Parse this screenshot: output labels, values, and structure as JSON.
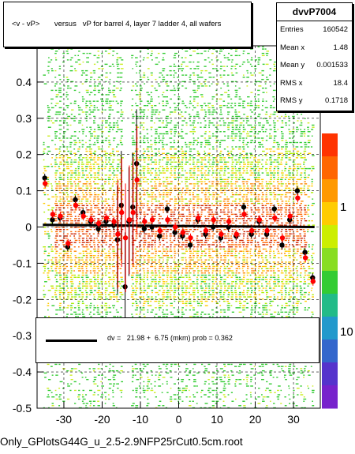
{
  "chart_data": {
    "type": "scatter",
    "title": "<v - vP>       versus   vP for barrel 4, layer 7 ladder 4, all wafers",
    "xlim": [
      -37,
      37
    ],
    "ylim": [
      -0.5,
      0.5
    ],
    "x_ticks": [
      "-30",
      "-20",
      "-10",
      "0",
      "10",
      "20",
      "30"
    ],
    "x_tick_values": [
      -30,
      -20,
      -10,
      0,
      10,
      20,
      30
    ],
    "y_ticks": [
      "-0.5",
      "-0.4",
      "-0.3",
      "-0.2",
      "-0.1",
      "0",
      "0.1",
      "0.2",
      "0.3",
      "0.4"
    ],
    "y_tick_values": [
      -0.5,
      -0.4,
      -0.3,
      -0.2,
      -0.1,
      0,
      0.1,
      0.2,
      0.3,
      0.4
    ],
    "z_scale": "log",
    "z_ticks": [
      "1",
      "10"
    ],
    "grid": true,
    "series": [
      {
        "marker": "black-circle",
        "x": [
          -35,
          -33,
          -31,
          -29,
          -27,
          -25,
          -23,
          -21,
          -19,
          -17,
          -16,
          -15,
          -14,
          -13,
          -12,
          -11,
          -9,
          -7,
          -5,
          -3,
          -1,
          1,
          3,
          5,
          7,
          9,
          11,
          13,
          15,
          17,
          19,
          21,
          23,
          25,
          27,
          29,
          31,
          33,
          35
        ],
        "y": [
          0.135,
          0.02,
          0.025,
          -0.055,
          0.075,
          0.04,
          0.015,
          -0.005,
          0.015,
          0.005,
          -0.035,
          0.06,
          -0.165,
          0.015,
          0.055,
          0.175,
          -0.005,
          0.0,
          -0.025,
          0.05,
          -0.015,
          -0.025,
          -0.05,
          0.02,
          -0.02,
          0.0,
          -0.03,
          0.0,
          -0.025,
          0.055,
          -0.02,
          0.015,
          -0.02,
          0.05,
          -0.05,
          0.02,
          0.1,
          -0.07,
          -0.14
        ]
      },
      {
        "marker": "red-circle",
        "x": [
          -35,
          -33,
          -31,
          -29,
          -27,
          -25,
          -23,
          -21,
          -19,
          -17,
          -16,
          -15,
          -14,
          -13,
          -12,
          -11,
          -9,
          -7,
          -5,
          -3,
          -1,
          1,
          3,
          5,
          7,
          9,
          11,
          13,
          15,
          17,
          19,
          21,
          23,
          25,
          27,
          29,
          31,
          33,
          35
        ],
        "y": [
          0.12,
          0.035,
          0.03,
          -0.045,
          0.06,
          0.03,
          0.02,
          0.01,
          0.025,
          0.015,
          -0.02,
          0.04,
          -0.03,
          0.02,
          0.04,
          0.13,
          0.015,
          0.02,
          -0.01,
          0.02,
          0.0,
          -0.015,
          -0.03,
          0.025,
          -0.01,
          0.02,
          -0.02,
          0.015,
          -0.02,
          0.035,
          -0.01,
          0.02,
          -0.01,
          0.025,
          -0.03,
          0.03,
          0.08,
          -0.085,
          -0.15
        ]
      }
    ],
    "fit": {
      "label": "dv =   21.98 +  6.75 (mkm) prob = 0.362",
      "y_at_min": 0.006,
      "y_at_max": 0.0
    }
  },
  "stats": {
    "name": "dvvP7004",
    "rows": [
      {
        "label": "Entries",
        "value": "160542"
      },
      {
        "label": "Mean x",
        "value": "1.48"
      },
      {
        "label": "Mean y",
        "value": "0.001533"
      },
      {
        "label": "RMS x",
        "value": "18.4"
      },
      {
        "label": "RMS y",
        "value": "0.1718"
      }
    ]
  },
  "footer": "Only_GPlotsG44G_u_2.5-2.9NFP25rCut0.5cm.root",
  "colors": {
    "heat_low": "#33cc33",
    "heat_mid": "#ffcc00",
    "heat_high": "#cc2200",
    "frame": "#000000"
  }
}
